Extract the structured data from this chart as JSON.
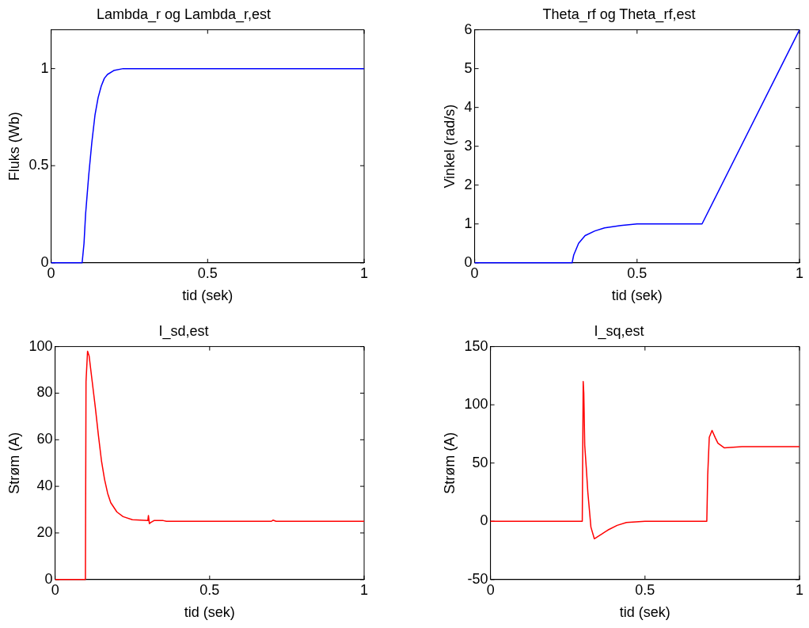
{
  "chart_data": [
    {
      "type": "line",
      "title": "Lambda_r og Lambda_r,est",
      "xlabel": "tid (sek)",
      "ylabel": "Fluks (Wb)",
      "xlim": [
        0,
        1
      ],
      "xticks": [
        0,
        0.5,
        1
      ],
      "ylim": [
        0,
        1.2
      ],
      "yticks": [
        0,
        0.5,
        1
      ],
      "grid": false,
      "legend": false,
      "marker": "none",
      "line_style": "solid",
      "series": [
        {
          "color": "#0000ff",
          "x": [
            0,
            0.099,
            0.105,
            0.11,
            0.12,
            0.13,
            0.14,
            0.15,
            0.16,
            0.17,
            0.18,
            0.2,
            0.23,
            1
          ],
          "values": [
            0,
            0,
            0.1,
            0.25,
            0.45,
            0.62,
            0.76,
            0.85,
            0.91,
            0.95,
            0.97,
            0.99,
            1,
            1
          ]
        }
      ]
    },
    {
      "type": "line",
      "title": "Theta_rf og Theta_rf,est",
      "xlabel": "tid (sek)",
      "ylabel": "Vinkel (rad/s)",
      "xlim": [
        0,
        1
      ],
      "xticks": [
        0,
        0.5,
        1
      ],
      "ylim": [
        0,
        6
      ],
      "yticks": [
        0,
        1,
        2,
        3,
        4,
        5,
        6
      ],
      "grid": false,
      "legend": false,
      "marker": "none",
      "line_style": "solid",
      "series": [
        {
          "color": "#0000ff",
          "x": [
            0,
            0.3,
            0.305,
            0.32,
            0.34,
            0.37,
            0.4,
            0.45,
            0.5,
            0.7,
            1
          ],
          "values": [
            0,
            0,
            0.2,
            0.5,
            0.7,
            0.82,
            0.9,
            0.96,
            1,
            1,
            6
          ]
        }
      ]
    },
    {
      "type": "line",
      "title": "I_sd,est",
      "xlabel": "tid (sek)",
      "ylabel": "Strøm (A)",
      "xlim": [
        0,
        1
      ],
      "xticks": [
        0,
        0.5,
        1
      ],
      "ylim": [
        0,
        100
      ],
      "yticks": [
        0,
        20,
        40,
        60,
        80,
        100
      ],
      "grid": false,
      "legend": false,
      "marker": "none",
      "line_style": "solid",
      "series": [
        {
          "color": "#ff0000",
          "x": [
            0,
            0.098,
            0.1,
            0.105,
            0.11,
            0.12,
            0.13,
            0.14,
            0.15,
            0.16,
            0.17,
            0.18,
            0.2,
            0.22,
            0.25,
            0.3,
            0.302,
            0.305,
            0.31,
            0.32,
            0.35,
            0.36,
            0.7,
            0.705,
            0.715,
            1
          ],
          "values": [
            0,
            0,
            85,
            98,
            96,
            85,
            74,
            62,
            51,
            43,
            37,
            33,
            29,
            27,
            25.7,
            25.3,
            27.5,
            24,
            24.5,
            25.3,
            25.3,
            25,
            25,
            25.5,
            25,
            25
          ]
        }
      ]
    },
    {
      "type": "line",
      "title": "I_sq,est",
      "xlabel": "tid (sek)",
      "ylabel": "Strøm (A)",
      "xlim": [
        0,
        1
      ],
      "xticks": [
        0,
        0.5,
        1
      ],
      "ylim": [
        -50,
        150
      ],
      "yticks": [
        -50,
        0,
        50,
        100,
        150
      ],
      "grid": false,
      "legend": false,
      "marker": "none",
      "line_style": "solid",
      "series": [
        {
          "color": "#ff0000",
          "x": [
            0,
            0.297,
            0.3,
            0.302,
            0.305,
            0.31,
            0.315,
            0.325,
            0.336,
            0.36,
            0.38,
            0.41,
            0.44,
            0.5,
            0.7,
            0.703,
            0.708,
            0.717,
            0.727,
            0.736,
            0.757,
            0.814,
            1
          ],
          "values": [
            0,
            0,
            120,
            110,
            65,
            46,
            25,
            -5,
            -15,
            -11,
            -7.5,
            -3.5,
            -1,
            0,
            0,
            40,
            72,
            78,
            72,
            67,
            63,
            64,
            64
          ]
        }
      ]
    }
  ]
}
